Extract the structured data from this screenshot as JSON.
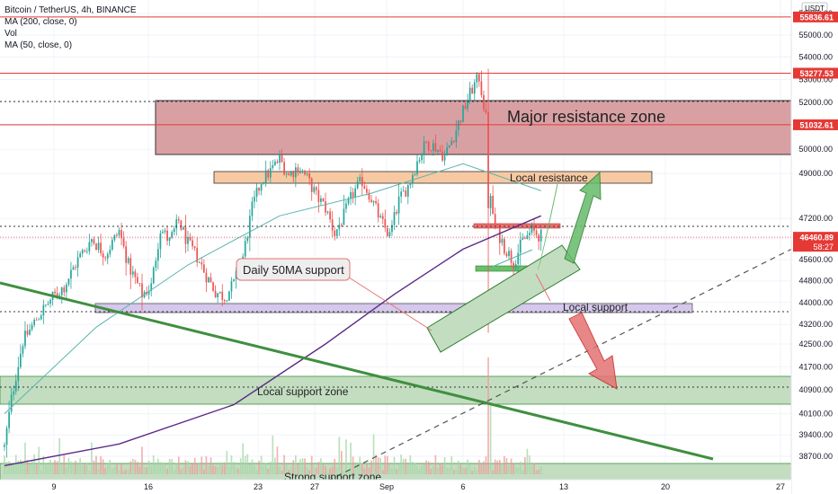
{
  "header": {
    "symbol_line": "Bitcoin / TetherUS, 4h, BINANCE",
    "indicators": [
      "MA (200, close, 0)",
      "Vol",
      "MA (50, close, 0)"
    ]
  },
  "currency_label": "USDT",
  "price_axis": {
    "ticks": [
      56000,
      55000,
      54000,
      53000,
      52000,
      51000,
      50000,
      49000,
      47200,
      46400,
      45600,
      44800,
      44000,
      43200,
      42500,
      41700,
      40900,
      40100,
      39400,
      38700
    ],
    "tick_labels": [
      "56000.00",
      "55000.00",
      "54000.00",
      "53000.00",
      "52000.00",
      "51000.00",
      "50000.00",
      "49000.00",
      "47200.00",
      "46400.00",
      "45600.00",
      "44800.00",
      "44000.00",
      "43200.00",
      "42500.00",
      "41700.00",
      "40900.00",
      "40100.00",
      "39400.00",
      "38700.00"
    ],
    "flags": [
      {
        "value": 55836.61,
        "label": "55836.61",
        "color": "#e53935"
      },
      {
        "value": 53277.53,
        "label": "53277.53",
        "color": "#e53935"
      },
      {
        "value": 51032.61,
        "label": "51032.61",
        "color": "#e53935"
      },
      {
        "value": 46460.89,
        "label": "46460.89",
        "sublabel": "58:27",
        "color": "#e53935"
      }
    ]
  },
  "time_axis": {
    "labels": [
      "9",
      "16",
      "23",
      "27",
      "Sep",
      "6",
      "13",
      "20",
      "27"
    ]
  },
  "annotations": {
    "major_resistance": "Major resistance zone",
    "local_resistance": "Local resistance",
    "daily_50ma": "Daily 50MA support",
    "local_support": "Local support",
    "local_support_zone": "Local support zone",
    "strong_support_zone": "Strong support zone"
  },
  "colors": {
    "up": "#26a69a",
    "down": "#ef5350",
    "ma200": "#5b2a86",
    "ma50": "#5ab4ac",
    "resistance_fill": "#d9a0a4",
    "local_resistance_fill": "#f7c9a3",
    "support_fill": "#c3ddc0",
    "local_support_fill": "#d6c8ec",
    "trendline": "#3f8f3f",
    "level_line": "#e53935"
  },
  "chart_data": {
    "type": "candlestick",
    "symbol": "Bitcoin / TetherUS",
    "interval": "4h",
    "exchange": "BINANCE",
    "y_unit": "USDT",
    "ylim": [
      38300,
      56800
    ],
    "price_scale": "log",
    "anchors": [
      [
        0,
        39000
      ],
      [
        3,
        40600
      ],
      [
        8,
        42600
      ],
      [
        14,
        43400
      ],
      [
        20,
        44100
      ],
      [
        26,
        44600
      ],
      [
        32,
        45600
      ],
      [
        38,
        46400
      ],
      [
        44,
        45800
      ],
      [
        50,
        46700
      ],
      [
        54,
        45400
      ],
      [
        60,
        44300
      ],
      [
        64,
        44600
      ],
      [
        68,
        46800
      ],
      [
        72,
        46300
      ],
      [
        76,
        47100
      ],
      [
        80,
        46200
      ],
      [
        84,
        45700
      ],
      [
        88,
        45000
      ],
      [
        92,
        44400
      ],
      [
        96,
        44200
      ],
      [
        100,
        44700
      ],
      [
        104,
        45700
      ],
      [
        108,
        47600
      ],
      [
        112,
        48700
      ],
      [
        116,
        49100
      ],
      [
        120,
        49600
      ],
      [
        124,
        48900
      ],
      [
        128,
        49300
      ],
      [
        132,
        48800
      ],
      [
        136,
        48100
      ],
      [
        140,
        47600
      ],
      [
        144,
        46600
      ],
      [
        148,
        47300
      ],
      [
        152,
        48200
      ],
      [
        156,
        48700
      ],
      [
        160,
        48000
      ],
      [
        164,
        47100
      ],
      [
        168,
        46500
      ],
      [
        172,
        47900
      ],
      [
        176,
        48500
      ],
      [
        180,
        49500
      ],
      [
        184,
        50300
      ],
      [
        188,
        50100
      ],
      [
        192,
        49700
      ],
      [
        196,
        50600
      ],
      [
        200,
        51600
      ],
      [
        204,
        52600
      ],
      [
        207,
        53100
      ],
      [
        210,
        51300
      ],
      [
        212,
        47900
      ],
      [
        214,
        46900
      ],
      [
        218,
        46100
      ],
      [
        222,
        45500
      ],
      [
        226,
        46300
      ],
      [
        230,
        46700
      ],
      [
        234,
        46500
      ]
    ],
    "ma200": [
      [
        0,
        38400
      ],
      [
        50,
        39100
      ],
      [
        100,
        40400
      ],
      [
        140,
        42500
      ],
      [
        170,
        44300
      ],
      [
        200,
        46000
      ],
      [
        234,
        47300
      ]
    ],
    "ma50": [
      [
        0,
        40100
      ],
      [
        40,
        43100
      ],
      [
        80,
        45400
      ],
      [
        120,
        47300
      ],
      [
        160,
        48200
      ],
      [
        200,
        49400
      ],
      [
        234,
        48300
      ]
    ],
    "levels": [
      55836.61,
      53277.53,
      51032.61
    ],
    "last_price": 46460.89,
    "zones": [
      {
        "label": "Major resistance zone",
        "from": 50900,
        "to": 53100
      },
      {
        "label": "Local resistance",
        "from": 49400,
        "to": 49800
      },
      {
        "label": "Local support",
        "from": 44000,
        "to": 44200
      },
      {
        "label": "Local support zone",
        "from": 40700,
        "to": 41600
      },
      {
        "label": "Strong support zone",
        "from": 38300,
        "to": 38800
      }
    ],
    "x_labels": [
      "9",
      "16",
      "23",
      "27",
      "Sep",
      "6",
      "13",
      "20",
      "27"
    ],
    "grid": true
  }
}
